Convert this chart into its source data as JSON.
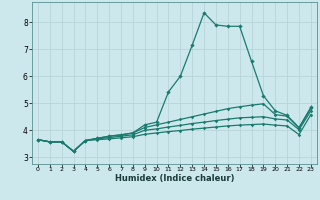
{
  "xlabel": "Humidex (Indice chaleur)",
  "xlim": [
    -0.5,
    23.5
  ],
  "ylim": [
    2.75,
    8.75
  ],
  "yticks": [
    3,
    4,
    5,
    6,
    7,
    8
  ],
  "xticks": [
    0,
    1,
    2,
    3,
    4,
    5,
    6,
    7,
    8,
    9,
    10,
    11,
    12,
    13,
    14,
    15,
    16,
    17,
    18,
    19,
    20,
    21,
    22,
    23
  ],
  "background_color": "#cce8ed",
  "grid_color": "#b8d4d8",
  "line_color": "#1a7a6e",
  "line1_y": [
    3.65,
    3.57,
    3.57,
    3.22,
    3.62,
    3.7,
    3.78,
    3.83,
    3.9,
    4.2,
    4.3,
    5.42,
    6.0,
    7.15,
    8.35,
    7.9,
    7.85,
    7.85,
    6.55,
    5.28,
    4.72,
    4.55,
    4.1,
    4.85
  ],
  "line2_y": [
    3.65,
    3.57,
    3.57,
    3.22,
    3.62,
    3.7,
    3.78,
    3.83,
    3.9,
    4.1,
    4.2,
    4.3,
    4.4,
    4.5,
    4.6,
    4.7,
    4.8,
    4.87,
    4.93,
    4.98,
    4.58,
    4.52,
    4.08,
    4.82
  ],
  "line3_y": [
    3.65,
    3.57,
    3.57,
    3.22,
    3.62,
    3.68,
    3.73,
    3.78,
    3.83,
    4.0,
    4.05,
    4.12,
    4.18,
    4.25,
    4.3,
    4.36,
    4.41,
    4.46,
    4.48,
    4.5,
    4.42,
    4.38,
    4.02,
    4.72
  ],
  "line4_y": [
    3.65,
    3.57,
    3.57,
    3.22,
    3.62,
    3.65,
    3.68,
    3.72,
    3.76,
    3.85,
    3.9,
    3.95,
    3.99,
    4.04,
    4.08,
    4.12,
    4.16,
    4.19,
    4.21,
    4.23,
    4.19,
    4.16,
    3.84,
    4.58
  ]
}
